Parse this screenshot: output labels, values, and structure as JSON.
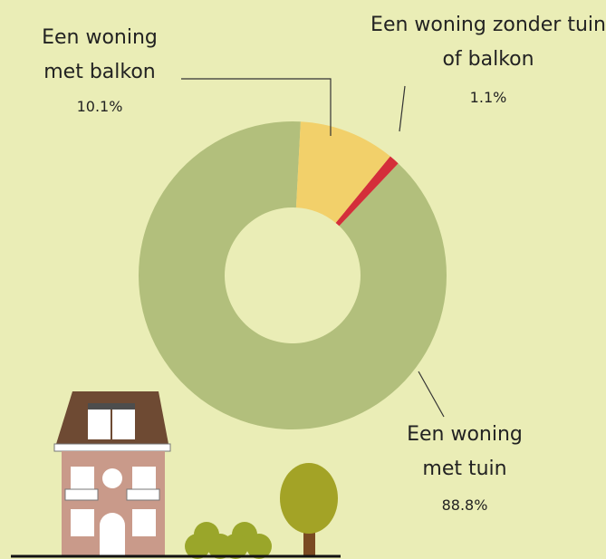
{
  "chart_data": {
    "type": "pie",
    "categories": [
      "Een woning met balkon",
      "Een woning zonder tuin of balkon",
      "Een woning met tuin"
    ],
    "values": [
      10.1,
      1.1,
      88.8
    ],
    "value_labels": [
      "10.1%",
      "1.1%",
      "88.8%"
    ],
    "colors": [
      "#f2d06a",
      "#d42e3a",
      "#b2bf7c"
    ],
    "donut": true
  }
}
